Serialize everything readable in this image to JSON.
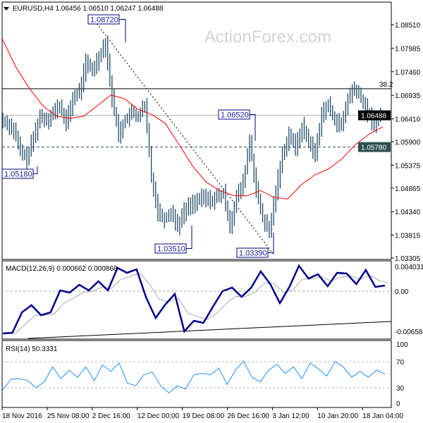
{
  "header": {
    "symbol_line": "EURUSD,H4  1.06456 1.06510 1.06247 1.06488",
    "menu_icon": "triangle-down-icon"
  },
  "watermark": "ActionForex.com",
  "colors": {
    "bars": "#1f4a66",
    "ma": "#ff0000",
    "macd": "#00008b",
    "signal": "#a9a9a9",
    "rsi": "#1e90ff",
    "label_border": "#000080",
    "label_text": "#1a1aa0",
    "current_price_bg": "#000000",
    "level_bg": "#2f4f4f"
  },
  "chart_data": [
    {
      "type": "bar",
      "title": "EURUSD,H4",
      "ohlc_readout": {
        "open": 1.06456,
        "high": 1.0651,
        "low": 1.06247,
        "close": 1.06488
      },
      "ylim": [
        1.03305,
        1.0851
      ],
      "y_ticks": [
        "1.08510",
        "1.07985",
        "1.07460",
        "1.06935",
        "1.06410",
        "1.05900",
        "1.05375",
        "1.04865",
        "1.04340",
        "1.03815",
        "1.03305"
      ],
      "x_ticks": [
        "18 Nov 2016",
        "25 Nov 08:00",
        "2 Dec 16:00",
        "12 Dec 00:00",
        "19 Dec 08:00",
        "26 Dec 16:00",
        "3 Jan 12:00",
        "10 Jan 20:00",
        "18 Jan 04:00"
      ],
      "price_path": [
        1.0639,
        1.0631,
        1.0615,
        1.0568,
        1.0552,
        1.0599,
        1.0647,
        1.0639,
        1.0654,
        1.067,
        1.0631,
        1.0686,
        1.0702,
        1.0765,
        1.0749,
        1.078,
        1.0812,
        1.0686,
        1.0607,
        1.0639,
        1.0654,
        1.0647,
        1.067,
        1.0513,
        1.0434,
        1.0418,
        1.0434,
        1.0403,
        1.0434,
        1.045,
        1.0458,
        1.0466,
        1.0458,
        1.0466,
        1.0474,
        1.0403,
        1.0466,
        1.0497,
        1.0592,
        1.0481,
        1.0418,
        1.0387,
        1.0481,
        1.056,
        1.0607,
        1.0576,
        1.0623,
        1.0592,
        1.056,
        1.0654,
        1.067,
        1.0639,
        1.0623,
        1.0686,
        1.0709,
        1.0686,
        1.0654,
        1.0631,
        1.0649
      ],
      "moving_average": [
        1.082,
        1.0757,
        1.0709,
        1.067,
        1.0647,
        1.0642,
        1.0647,
        1.067,
        1.0694,
        1.0686,
        1.0662,
        1.0651,
        1.0631,
        1.0584,
        1.0536,
        1.05,
        1.0481,
        1.047,
        1.0469,
        1.0481,
        1.0466,
        1.0462,
        1.0494,
        1.0516,
        1.0529,
        1.0552,
        1.0584,
        1.0607,
        1.0623
      ],
      "price_labels": [
        "1.08720",
        "1.05180",
        "1.03510",
        "1.03390",
        "1.06520"
      ],
      "current_price": "1.06488",
      "support_level": "1.05780",
      "fib_level": {
        "label": "38.2",
        "price": 1.0708
      },
      "trendline": {
        "from": 1.0872,
        "to": 1.0339
      }
    },
    {
      "type": "line",
      "title": "MACD(12,26,9) 0.000662 0.000868",
      "ylim": [
        -0.00658,
        0.004031
      ],
      "y_ticks": [
        "0.004031",
        "0.00",
        "-0.00658"
      ],
      "macd": [
        -0.00691,
        -0.0068,
        -0.00346,
        -0.0023,
        -0.00392,
        -0.00346,
        0.00012,
        -0.00023,
        0.00104,
        0.00012,
        0.00161,
        0.00012,
        0.0038,
        0.003,
        0.00357,
        -0.00104,
        -0.00438,
        -0.00219,
        -0.00046,
        -0.00657,
        -0.00484,
        -0.00518,
        -0.00253,
        0,
        0.00058,
        -0.00092,
        0.00058,
        0.00323,
        0.00115,
        -0.00196,
        0.00069,
        0.00415,
        0.00207,
        0.00276,
        0.00081,
        0.003,
        0.00288,
        0.00115,
        0.00346,
        0.00069,
        0.00092
      ],
      "trendline": {
        "from": -0.00772,
        "to": -0.00495
      }
    },
    {
      "type": "line",
      "title": "RSI(14) 50.3331",
      "ylim": [
        0,
        100
      ],
      "y_ticks": [
        "100",
        "70",
        "30",
        "0"
      ],
      "levels": [
        70,
        30
      ],
      "rsi": [
        27,
        43,
        44,
        41,
        30,
        39,
        62,
        44,
        57,
        46,
        62,
        41,
        65,
        55,
        68,
        37,
        33,
        50,
        54,
        33,
        22,
        33,
        28,
        50,
        52,
        50,
        60,
        35,
        57,
        71,
        46,
        39,
        57,
        66,
        52,
        62,
        44,
        68,
        59,
        48,
        70,
        62,
        46,
        55,
        46,
        57,
        51
      ]
    }
  ]
}
